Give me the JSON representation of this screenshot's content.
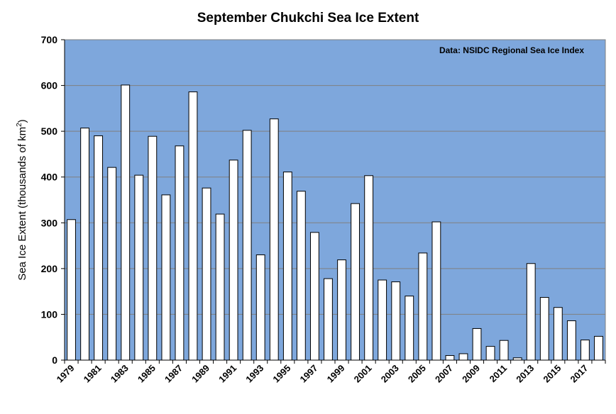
{
  "chart_data": {
    "type": "bar",
    "title": "September Chukchi Sea Ice Extent",
    "ylabel_main": "Sea Ice Extent (thousands of km",
    "ylabel_sup": "2",
    "ylabel_close": ")",
    "xlabel": "",
    "annotation": "Data: NSIDC Regional Sea Ice Index",
    "ylim": [
      0,
      700
    ],
    "yticks": [
      0,
      100,
      200,
      300,
      400,
      500,
      600,
      700
    ],
    "grid": true,
    "plot_background": "#7EA7DC",
    "bar_fill": "#FFFFFF",
    "bar_stroke": "#000000",
    "x_tick_labels": [
      "1979",
      "1981",
      "1983",
      "1985",
      "1987",
      "1989",
      "1991",
      "1993",
      "1995",
      "1997",
      "1999",
      "2001",
      "2003",
      "2005",
      "2007",
      "2009",
      "2011",
      "2013",
      "2015",
      "2017"
    ],
    "categories": [
      "1979",
      "1980",
      "1981",
      "1982",
      "1983",
      "1984",
      "1985",
      "1986",
      "1987",
      "1988",
      "1989",
      "1990",
      "1991",
      "1992",
      "1993",
      "1994",
      "1995",
      "1996",
      "1997",
      "1998",
      "1999",
      "2000",
      "2001",
      "2002",
      "2003",
      "2004",
      "2005",
      "2006",
      "2007",
      "2008",
      "2009",
      "2010",
      "2011",
      "2012",
      "2013",
      "2014",
      "2015",
      "2016",
      "2017",
      "2018"
    ],
    "values": [
      307,
      507,
      490,
      421,
      601,
      404,
      489,
      361,
      468,
      586,
      376,
      319,
      437,
      502,
      230,
      527,
      411,
      369,
      279,
      178,
      219,
      342,
      403,
      175,
      171,
      140,
      234,
      302,
      10,
      14,
      69,
      30,
      43,
      5,
      211,
      137,
      115,
      86,
      44,
      52
    ]
  }
}
